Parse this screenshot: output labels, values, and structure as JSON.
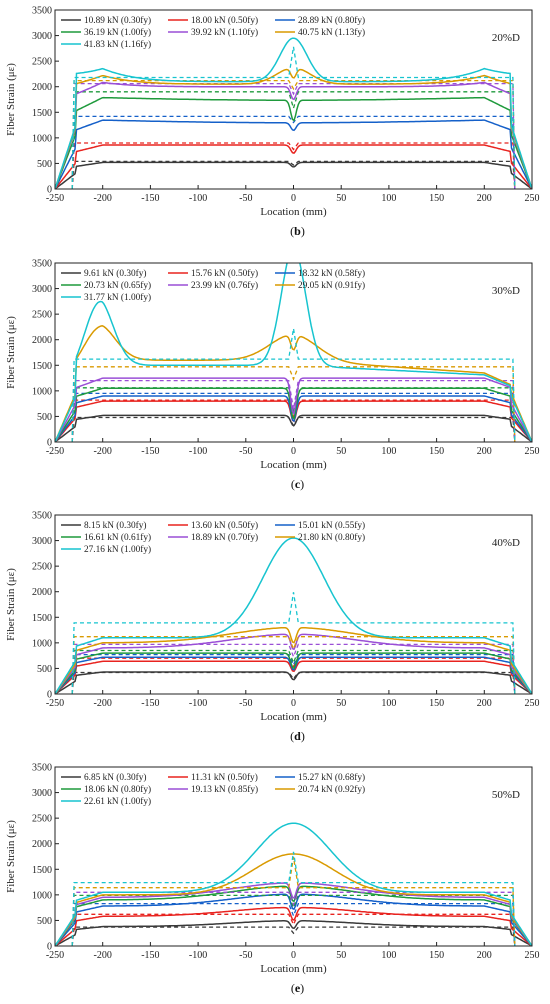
{
  "chart_data": [
    {
      "type": "line",
      "panel_label": "(b)",
      "tag": "20%D",
      "xlabel": "Location (mm)",
      "ylabel": "Fiber Strain (με)",
      "xlim": [
        -250,
        250
      ],
      "ylim": [
        0,
        3500
      ],
      "xticks": [
        -250,
        -200,
        -150,
        -100,
        -50,
        0,
        50,
        100,
        150,
        200,
        250
      ],
      "yticks": [
        0,
        500,
        1000,
        1500,
        2000,
        2500,
        3000,
        3500
      ],
      "legend_position": "top-left, 3 columns",
      "series": [
        {
          "name": "10.89 kN (0.30fy)",
          "color": "#3a3a3a",
          "plateau": 540,
          "level": 520,
          "shape": "flat",
          "notch": 90
        },
        {
          "name": "18.00 kN (0.50fy)",
          "color": "#e8231f",
          "plateau": 900,
          "level": 860,
          "shape": "flat",
          "notch": 160
        },
        {
          "name": "28.89 kN (0.80fy)",
          "color": "#1560c9",
          "plateau": 1420,
          "level": 1360,
          "shape": "sag",
          "notch": 150
        },
        {
          "name": "36.19 kN (1.00fy)",
          "color": "#1f9a3c",
          "plateau": 1900,
          "level": 1800,
          "shape": "sag",
          "notch": 400
        },
        {
          "name": "39.92 kN (1.10fy)",
          "color": "#9a4fd6",
          "plateau": 2060,
          "level": 2000,
          "shape": "ends",
          "notch": 250
        },
        {
          "name": "40.75 kN (1.13fy)",
          "color": "#d99a00",
          "plateau": 2120,
          "level": 2050,
          "shape": "ends-peak",
          "notch": 200
        },
        {
          "name": "41.83 kN (1.16fy)",
          "color": "#17c4cf",
          "plateau": 2180,
          "level": 2100,
          "shape": "ends-bigpeak",
          "notch": 0
        }
      ]
    },
    {
      "type": "line",
      "panel_label": "(c)",
      "tag": "30%D",
      "xlabel": "Location (mm)",
      "ylabel": "Fiber Strain (με)",
      "xlim": [
        -250,
        250
      ],
      "ylim": [
        0,
        3500
      ],
      "xticks": [
        -250,
        -200,
        -150,
        -100,
        -50,
        0,
        50,
        100,
        150,
        200,
        250
      ],
      "yticks": [
        0,
        500,
        1000,
        1500,
        2000,
        2500,
        3000,
        3500
      ],
      "legend_position": "top-left, 3 columns",
      "series": [
        {
          "name": "9.61 kN (0.30fy)",
          "color": "#3a3a3a",
          "plateau": 480,
          "level": 520,
          "shape": "flat",
          "notch": 200
        },
        {
          "name": "15.76 kN (0.50fy)",
          "color": "#e8231f",
          "plateau": 820,
          "level": 800,
          "shape": "flat",
          "notch": 400
        },
        {
          "name": "18.32 kN (0.58fy)",
          "color": "#1560c9",
          "plateau": 950,
          "level": 900,
          "shape": "flat",
          "notch": 500
        },
        {
          "name": "20.73 kN (0.65fy)",
          "color": "#1f9a3c",
          "plateau": 1060,
          "level": 1050,
          "shape": "flat",
          "notch": 600
        },
        {
          "name": "23.99 kN (0.76fy)",
          "color": "#9a4fd6",
          "plateau": 1200,
          "level": 1250,
          "shape": "flat",
          "notch": 700
        },
        {
          "name": "29.05 kN (0.91fy)",
          "color": "#d99a00",
          "plateau": 1470,
          "level": 1600,
          "shape": "rise30",
          "notch": 300
        },
        {
          "name": "31.77 kN (1.00fy)",
          "color": "#17c4cf",
          "plateau": 1620,
          "level": 1500,
          "shape": "spike30",
          "notch": 0
        }
      ]
    },
    {
      "type": "line",
      "panel_label": "(d)",
      "tag": "40%D",
      "xlabel": "Location (mm)",
      "ylabel": "Fiber Strain (με)",
      "xlim": [
        -250,
        250
      ],
      "ylim": [
        0,
        3500
      ],
      "xticks": [
        -250,
        -200,
        -150,
        -100,
        -50,
        0,
        50,
        100,
        150,
        200,
        250
      ],
      "yticks": [
        0,
        500,
        1000,
        1500,
        2000,
        2500,
        3000,
        3500
      ],
      "legend_position": "top-left, 3 columns",
      "series": [
        {
          "name": "8.15 kN (0.30fy)",
          "color": "#3a3a3a",
          "plateau": 420,
          "level": 430,
          "shape": "flat",
          "notch": 150
        },
        {
          "name": "13.60 kN (0.50fy)",
          "color": "#e8231f",
          "plateau": 700,
          "level": 640,
          "shape": "flat",
          "notch": 200
        },
        {
          "name": "15.01 kN (0.55fy)",
          "color": "#1560c9",
          "plateau": 770,
          "level": 720,
          "shape": "flat",
          "notch": 250
        },
        {
          "name": "16.61 kN (0.61fy)",
          "color": "#1f9a3c",
          "plateau": 850,
          "level": 800,
          "shape": "flat",
          "notch": 300
        },
        {
          "name": "18.89 kN (0.70fy)",
          "color": "#9a4fd6",
          "plateau": 970,
          "level": 900,
          "shape": "hump",
          "notch": 300
        },
        {
          "name": "21.80 kN (0.80fy)",
          "color": "#d99a00",
          "plateau": 1120,
          "level": 1000,
          "shape": "hump",
          "notch": 300
        },
        {
          "name": "27.16 kN (1.00fy)",
          "color": "#17c4cf",
          "plateau": 1390,
          "level": 1100,
          "shape": "peak40",
          "notch": 0
        }
      ]
    },
    {
      "type": "line",
      "panel_label": "(e)",
      "tag": "50%D",
      "xlabel": "Location (mm)",
      "ylabel": "Fiber Strain (με)",
      "xlim": [
        -250,
        250
      ],
      "ylim": [
        0,
        3500
      ],
      "xticks": [
        -250,
        -200,
        -150,
        -100,
        -50,
        0,
        50,
        100,
        150,
        200,
        250
      ],
      "yticks": [
        0,
        500,
        1000,
        1500,
        2000,
        2500,
        3000,
        3500
      ],
      "legend_position": "top-left, 3 columns",
      "series": [
        {
          "name": "6.85 kN (0.30fy)",
          "color": "#3a3a3a",
          "plateau": 370,
          "level": 380,
          "shape": "hump",
          "notch": 150
        },
        {
          "name": "11.31 kN (0.50fy)",
          "color": "#e8231f",
          "plateau": 620,
          "level": 580,
          "shape": "hump",
          "notch": 250
        },
        {
          "name": "15.27 kN (0.68fy)",
          "color": "#1560c9",
          "plateau": 830,
          "level": 780,
          "shape": "hump",
          "notch": 300
        },
        {
          "name": "18.06 kN (0.80fy)",
          "color": "#1f9a3c",
          "plateau": 990,
          "level": 900,
          "shape": "hump",
          "notch": 300
        },
        {
          "name": "19.13 kN (0.85fy)",
          "color": "#9a4fd6",
          "plateau": 1050,
          "level": 950,
          "shape": "hump",
          "notch": 300
        },
        {
          "name": "20.74 kN (0.92fy)",
          "color": "#d99a00",
          "plateau": 1140,
          "level": 1000,
          "shape": "peak50a",
          "notch": 0
        },
        {
          "name": "22.61 kN (1.00fy)",
          "color": "#17c4cf",
          "plateau": 1240,
          "level": 1050,
          "shape": "peak50b",
          "notch": 0
        }
      ]
    }
  ]
}
